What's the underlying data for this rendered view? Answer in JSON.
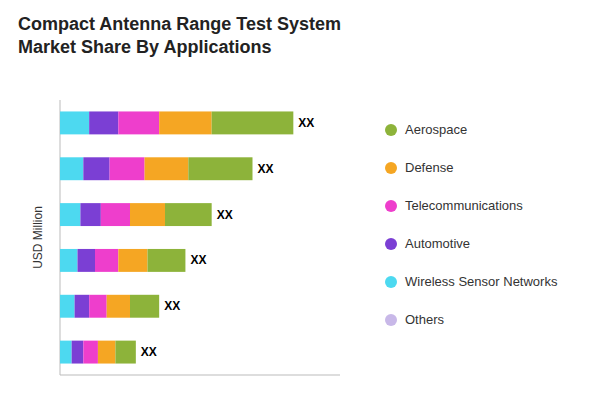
{
  "chart_data": {
    "type": "bar",
    "orientation": "horizontal",
    "stacked": true,
    "title": "Compact Antenna Range Test System\nMarket Share By Applications",
    "ylabel": "USD Million",
    "categories": [
      null,
      null,
      null,
      null,
      null,
      null
    ],
    "series": [
      {
        "name": "Others",
        "color": "#C8B8E8",
        "values": [
          null,
          null,
          null,
          null,
          null,
          null
        ]
      },
      {
        "name": "Wireless Sensor Networks",
        "color": "#4DD9F0",
        "values": [
          10,
          8,
          7,
          6,
          5,
          4
        ]
      },
      {
        "name": "Automotive",
        "color": "#7B3FD4",
        "values": [
          10,
          9,
          7,
          6,
          5,
          4
        ]
      },
      {
        "name": "Telecommunications",
        "color": "#EE3ECC",
        "values": [
          14,
          12,
          10,
          8,
          6,
          5
        ]
      },
      {
        "name": "Defense",
        "color": "#F5A623",
        "values": [
          18,
          15,
          12,
          10,
          8,
          6
        ]
      },
      {
        "name": "Aerospace",
        "color": "#8DB33A",
        "values": [
          28,
          22,
          16,
          13,
          10,
          7
        ]
      }
    ],
    "annotations": [
      "XX",
      "XX",
      "XX",
      "XX",
      "XX",
      "XX"
    ],
    "xlim": [
      0,
      96
    ],
    "xticks": [],
    "tick_labels": false,
    "grid": false,
    "legend": "right"
  }
}
